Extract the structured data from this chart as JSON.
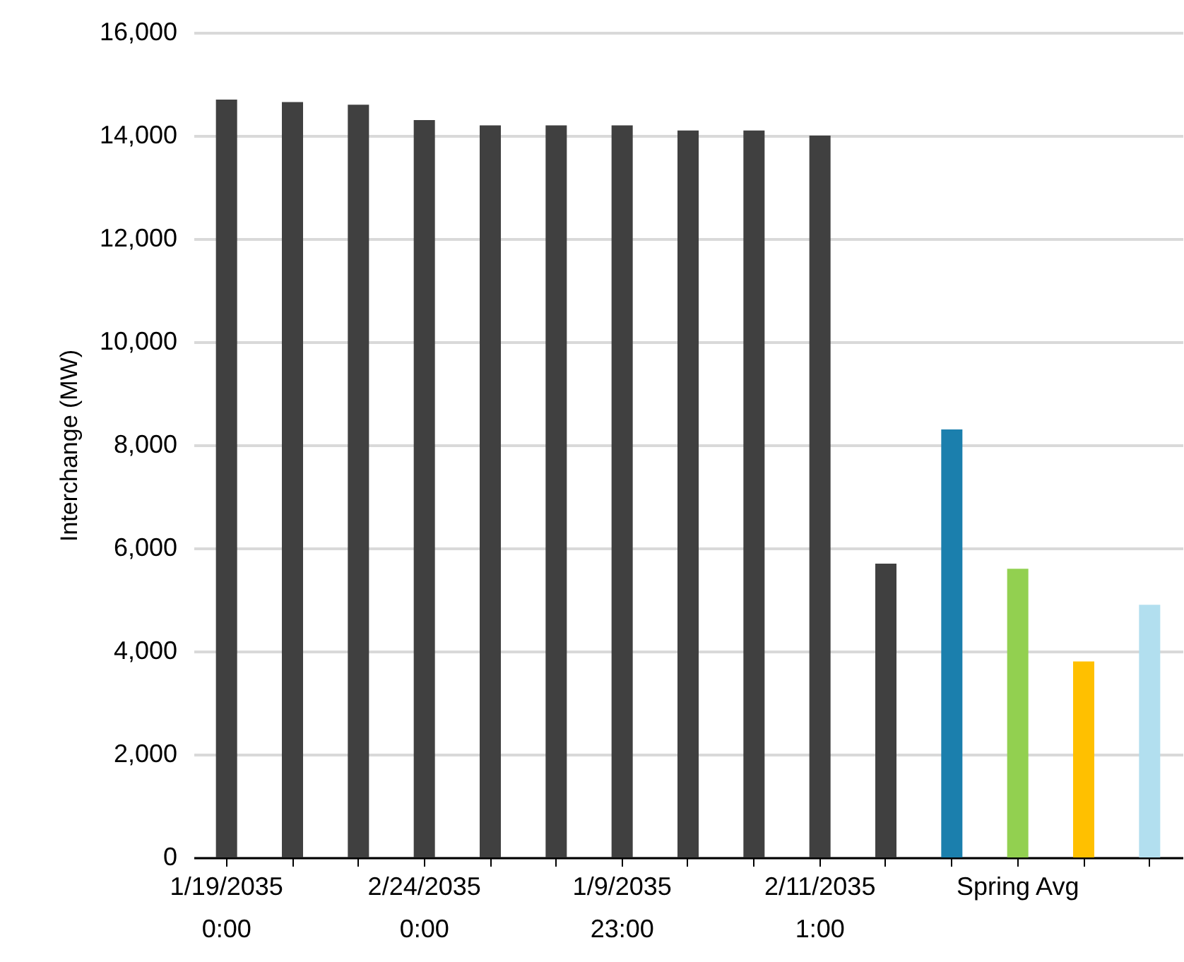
{
  "chart_data": {
    "type": "bar",
    "ylabel": "Interchange (MW)",
    "categories": [
      "1/19/2035 0:00",
      null,
      null,
      "2/24/2035 0:00",
      null,
      null,
      "1/9/2035 23:00",
      null,
      null,
      "2/11/2035 1:00",
      null,
      null,
      "Spring Avg",
      null,
      null
    ],
    "values": [
      14700,
      14650,
      14600,
      14300,
      14200,
      14200,
      14200,
      14100,
      14100,
      14000,
      5700,
      8300,
      5600,
      3800,
      4900
    ],
    "colors": [
      "#404040",
      "#404040",
      "#404040",
      "#404040",
      "#404040",
      "#404040",
      "#404040",
      "#404040",
      "#404040",
      "#404040",
      "#404040",
      "#1b7fad",
      "#92d050",
      "#ffc000",
      "#b2dfef"
    ],
    "ylim": [
      0,
      16000
    ],
    "yticks": [
      0,
      {
        "value": 2000,
        "label": "2,000"
      },
      {
        "value": 4000,
        "label": "4,000"
      },
      {
        "value": 6000,
        "label": "6,000"
      },
      {
        "value": 8000,
        "label": "8,000"
      },
      {
        "value": 10000,
        "label": "10,000"
      },
      {
        "value": 12000,
        "label": "12,000"
      },
      {
        "value": 14000,
        "label": "14,000"
      },
      {
        "value": 16000,
        "label": "16,000"
      }
    ],
    "grid": "y"
  }
}
